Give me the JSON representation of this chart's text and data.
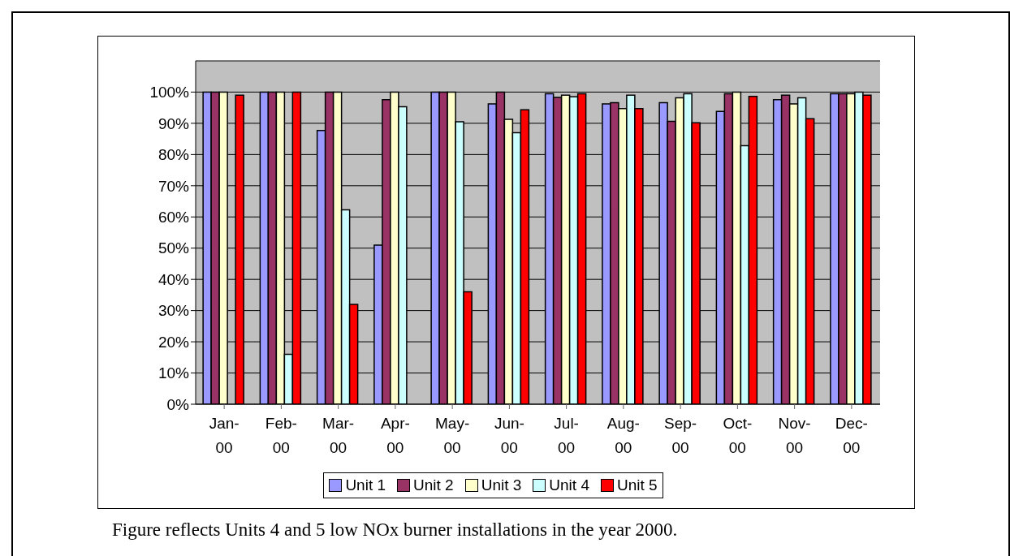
{
  "chart_data": {
    "type": "bar",
    "categories": [
      "Jan-00",
      "Feb-00",
      "Mar-00",
      "Apr-00",
      "May-00",
      "Jun-00",
      "Jul-00",
      "Aug-00",
      "Sep-00",
      "Oct-00",
      "Nov-00",
      "Dec-00"
    ],
    "series": [
      {
        "name": "Unit 1",
        "color": "#9999ff",
        "values": [
          100,
          100,
          87.7,
          51,
          100,
          96.2,
          99.5,
          96.2,
          96.6,
          93.8,
          97.6,
          99.5
        ]
      },
      {
        "name": "Unit 2",
        "color": "#993366",
        "values": [
          100,
          100,
          100,
          97.6,
          100,
          100,
          98.3,
          96.6,
          90.6,
          99.5,
          99,
          99.5
        ]
      },
      {
        "name": "Unit 3",
        "color": "#ffffcc",
        "values": [
          100,
          100,
          100,
          100,
          100,
          91.3,
          99,
          94.7,
          98.2,
          100,
          96.2,
          99.5
        ]
      },
      {
        "name": "Unit 4",
        "color": "#ccffff",
        "values": [
          0,
          16,
          62.3,
          95.3,
          90.5,
          87,
          98.5,
          99,
          99.5,
          82.8,
          98.2,
          100
        ]
      },
      {
        "name": "Unit 5",
        "color": "#ff0000",
        "values": [
          99,
          100,
          32,
          0,
          36,
          94.3,
          99.5,
          94.7,
          90.2,
          98.6,
          91.5,
          99
        ]
      }
    ],
    "ylim": [
      0,
      110
    ],
    "yticks": [
      {
        "value": 0,
        "label": "0%"
      },
      {
        "value": 10,
        "label": "10%"
      },
      {
        "value": 20,
        "label": "20%"
      },
      {
        "value": 30,
        "label": "30%"
      },
      {
        "value": 40,
        "label": "40%"
      },
      {
        "value": 50,
        "label": "50%"
      },
      {
        "value": 60,
        "label": "60%"
      },
      {
        "value": 70,
        "label": "70%"
      },
      {
        "value": 80,
        "label": "80%"
      },
      {
        "value": 90,
        "label": "90%"
      },
      {
        "value": 100,
        "label": "100%"
      }
    ],
    "grid": "y",
    "legend": "bottom",
    "annotations": [
      "Figure reflects Units 4 and 5 low NOx burner installations in the year 2000."
    ]
  }
}
